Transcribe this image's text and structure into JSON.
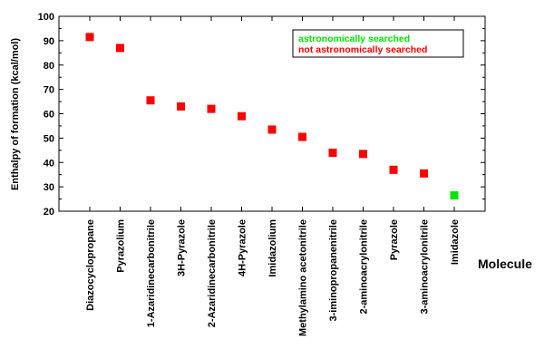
{
  "chart_data": {
    "type": "scatter",
    "title": "",
    "xlabel": "Molecule",
    "ylabel": "Enthalpy of formation (kcal/mol)",
    "ylim": [
      20,
      100
    ],
    "yticks": [
      20,
      30,
      40,
      50,
      60,
      70,
      80,
      90,
      100
    ],
    "grid": false,
    "legend_position": "top-right",
    "categories": [
      "Diazocyclopropane",
      "Pyrazolium",
      "1-Azaridinecarbonitrile",
      "3H-Pyrazole",
      "2-Azaridinecarbonitrile",
      "4H-Pyrazole",
      "Imidazolium",
      "Methylamino acetonitrile",
      "3-iminopropanenitrile",
      "2-aminoacrylonitrile",
      "Pyrazole",
      "3-aminoacrylonitrile",
      "Imidazole"
    ],
    "series": [
      {
        "name": "astronomically searched",
        "color": "#00e600",
        "points": [
          {
            "category": "Imidazole",
            "value": 26.5
          }
        ]
      },
      {
        "name": "not astronomically searched",
        "color": "#ff0000",
        "points": [
          {
            "category": "Diazocyclopropane",
            "value": 91.5
          },
          {
            "category": "Pyrazolium",
            "value": 87
          },
          {
            "category": "1-Azaridinecarbonitrile",
            "value": 65.5
          },
          {
            "category": "3H-Pyrazole",
            "value": 63
          },
          {
            "category": "2-Azaridinecarbonitrile",
            "value": 62
          },
          {
            "category": "4H-Pyrazole",
            "value": 59
          },
          {
            "category": "Imidazolium",
            "value": 53.5
          },
          {
            "category": "Methylamino acetonitrile",
            "value": 50.5
          },
          {
            "category": "3-iminopropanenitrile",
            "value": 44
          },
          {
            "category": "2-aminoacrylonitrile",
            "value": 43.5
          },
          {
            "category": "Pyrazole",
            "value": 37
          },
          {
            "category": "3-aminoacrylonitrile",
            "value": 35.5
          }
        ]
      }
    ]
  }
}
